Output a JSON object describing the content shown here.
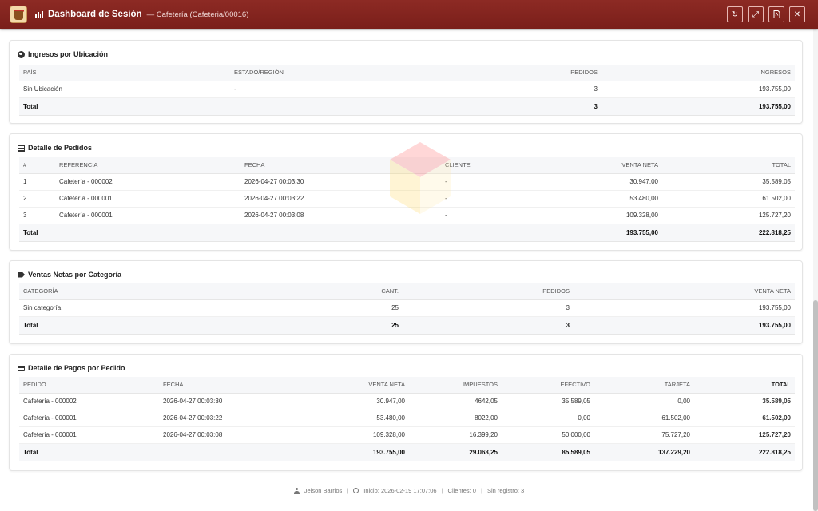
{
  "window": {
    "title": "Dashboard de Sesión",
    "subtitle": "— Cafetería (Cafeteria/00016)",
    "buttons": [
      "refresh-icon",
      "expand-icon",
      "pdf-icon",
      "close-icon"
    ],
    "accent_color": "#7e221d"
  },
  "ingresos": {
    "title": "Ingresos por Ubicación",
    "headers": [
      "País",
      "Estado/Región",
      "Pedidos",
      "Ingresos"
    ],
    "rows": [
      [
        "Sin Ubicación",
        "-",
        "3",
        "193.755,00"
      ]
    ],
    "total": [
      "Total",
      "",
      "3",
      "193.755,00"
    ]
  },
  "pedidos": {
    "title": "Detalle de Pedidos",
    "headers": [
      "#",
      "Referencia",
      "Fecha",
      "Cliente",
      "Venta Neta",
      "Total"
    ],
    "rows": [
      [
        "1",
        "Cafetería - 000002",
        "2026-04-27 00:03:30",
        "-",
        "30.947,00",
        "35.589,05"
      ],
      [
        "2",
        "Cafetería - 000001",
        "2026-04-27 00:03:22",
        "-",
        "53.480,00",
        "61.502,00"
      ],
      [
        "3",
        "Cafetería - 000001",
        "2026-04-27 00:03:08",
        "-",
        "109.328,00",
        "125.727,20"
      ]
    ],
    "total": [
      "Total",
      "",
      "",
      "",
      "193.755,00",
      "222.818,25"
    ]
  },
  "categorias": {
    "title": "Ventas Netas por Categoría",
    "headers": [
      "Categoría",
      "Cant.",
      "Pedidos",
      "Venta Neta"
    ],
    "rows": [
      [
        "Sin categoría",
        "25",
        "3",
        "193.755,00"
      ]
    ],
    "total": [
      "Total",
      "25",
      "3",
      "193.755,00"
    ]
  },
  "pagos": {
    "title": "Detalle de Pagos por Pedido",
    "headers": [
      "Pedido",
      "Fecha",
      "Venta Neta",
      "Impuestos",
      "Efectivo",
      "Tarjeta",
      "Total"
    ],
    "rows": [
      [
        "Cafetería - 000002",
        "2026-04-27 00:03:30",
        "30.947,00",
        "4642,05",
        "35.589,05",
        "0,00",
        "35.589,05"
      ],
      [
        "Cafetería - 000001",
        "2026-04-27 00:03:22",
        "53.480,00",
        "8022,00",
        "0,00",
        "61.502,00",
        "61.502,00"
      ],
      [
        "Cafetería - 000001",
        "2026-04-27 00:03:08",
        "109.328,00",
        "16.399,20",
        "50.000,00",
        "75.727,20",
        "125.727,20"
      ]
    ],
    "total": [
      "Total",
      "",
      "193.755,00",
      "29.063,25",
      "85.589,05",
      "137.229,20",
      "222.818,25"
    ]
  },
  "footer": {
    "user": "Jeison Barrios",
    "inicio": "Inicio: 2026-02-19 17:07:06",
    "clientes": "Clientes: 0",
    "sin_registro": "Sin registro: 3"
  }
}
